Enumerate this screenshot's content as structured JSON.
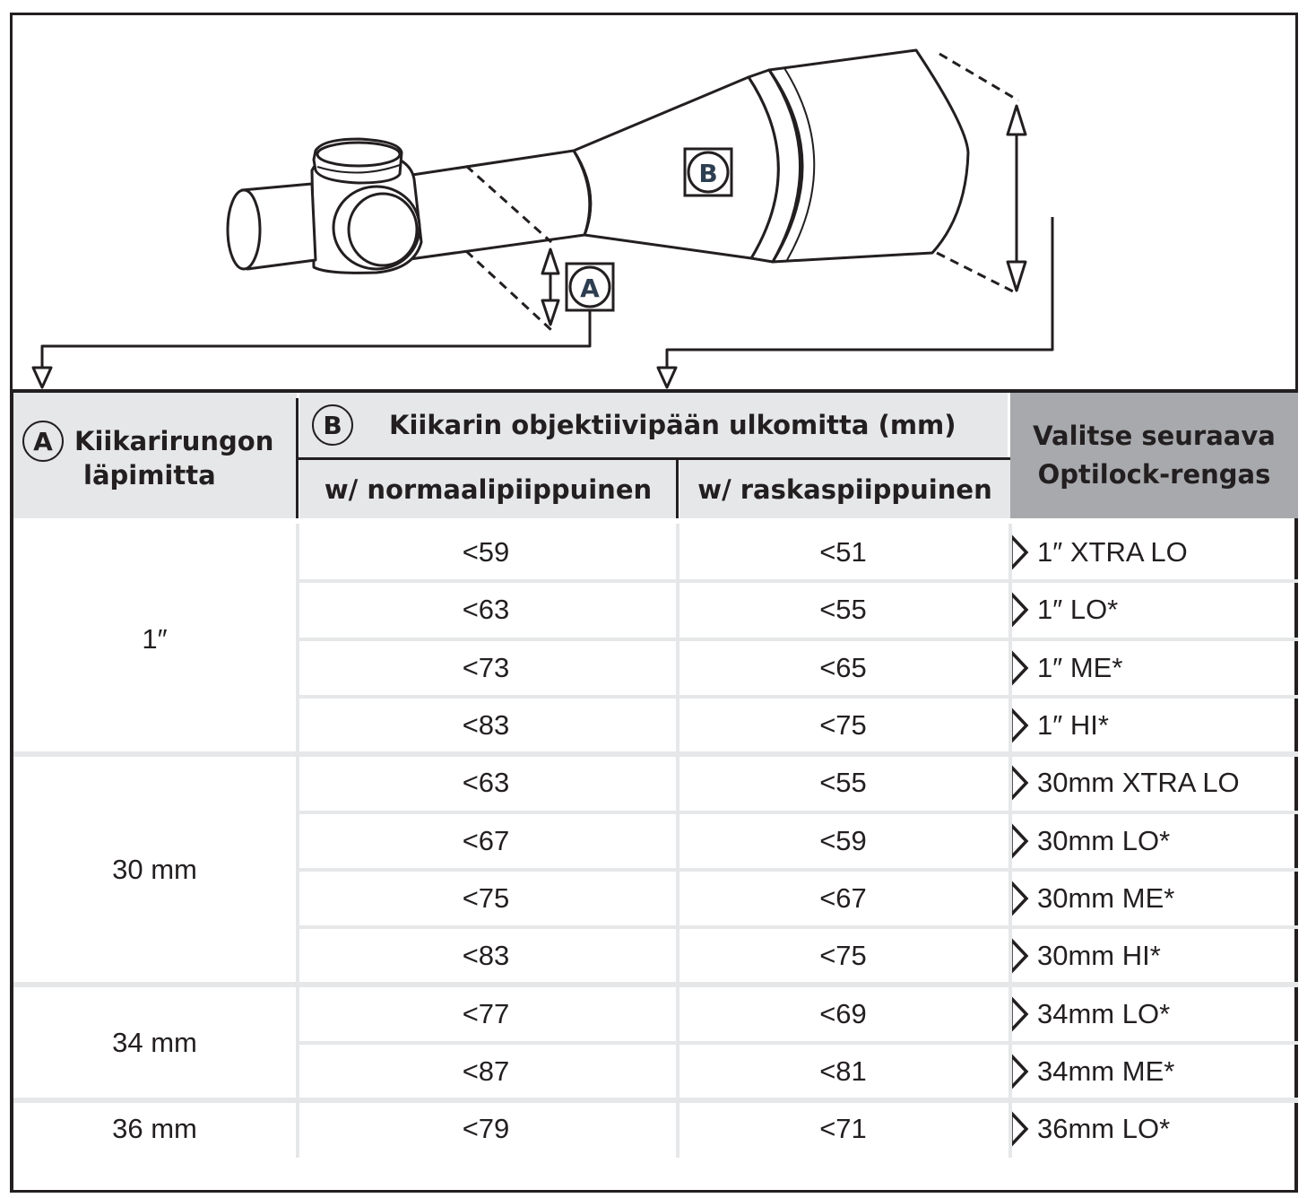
{
  "diagram": {
    "label_a": "A",
    "label_b": "B"
  },
  "table": {
    "col_a": {
      "badge": "A",
      "line1": "Kiikarirungon",
      "line2": "läpimitta"
    },
    "col_b": {
      "badge": "B",
      "title": "Kiikarin objektiivipään ulkomitta (mm)",
      "sub_normal": "w/ normaalipiippuinen",
      "sub_heavy": "w/ raskaspiippuinen"
    },
    "col_ring": {
      "line1": "Valitse seuraava",
      "line2": "Optilock-rengas"
    },
    "groups": [
      {
        "tube": "1″",
        "rows": [
          {
            "normal": "<59",
            "heavy": "<51",
            "ring": "1″ XTRA LO"
          },
          {
            "normal": "<63",
            "heavy": "<55",
            "ring": "1″ LO*"
          },
          {
            "normal": "<73",
            "heavy": "<65",
            "ring": "1″ ME*"
          },
          {
            "normal": "<83",
            "heavy": "<75",
            "ring": "1″ HI*"
          }
        ]
      },
      {
        "tube": "30 mm",
        "rows": [
          {
            "normal": "<63",
            "heavy": "<55",
            "ring": "30mm XTRA LO"
          },
          {
            "normal": "<67",
            "heavy": "<59",
            "ring": "30mm LO*"
          },
          {
            "normal": "<75",
            "heavy": "<67",
            "ring": "30mm ME*"
          },
          {
            "normal": "<83",
            "heavy": "<75",
            "ring": "30mm HI*"
          }
        ]
      },
      {
        "tube": "34 mm",
        "rows": [
          {
            "normal": "<77",
            "heavy": "<69",
            "ring": "34mm LO*"
          },
          {
            "normal": "<87",
            "heavy": "<81",
            "ring": "34mm ME*"
          }
        ]
      },
      {
        "tube": "36 mm",
        "rows": [
          {
            "normal": "<79",
            "heavy": "<71",
            "ring": "36mm LO*"
          }
        ]
      }
    ]
  }
}
